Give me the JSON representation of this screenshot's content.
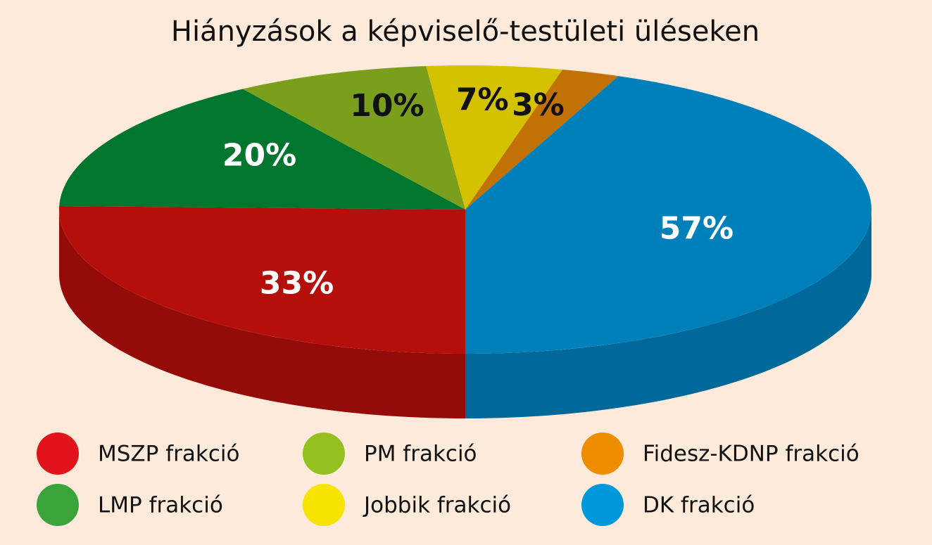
{
  "chart_data": {
    "type": "pie3d",
    "title": "Hiányzások a képviselő-testületi üléseken",
    "categories": [
      "MSZP frakció",
      "LMP frakció",
      "PM frakció",
      "Jobbik frakció",
      "Fidesz-KDNP frakció",
      "DK frakció"
    ],
    "values": [
      33,
      20,
      10,
      7,
      3,
      57
    ],
    "value_labels": [
      "33%",
      "20%",
      "10%",
      "7%",
      "3%",
      "57%"
    ],
    "colors": [
      "#b50f0c",
      "#00762e",
      "#7a9f1c",
      "#d4c100",
      "#c27205",
      "#0080bb"
    ],
    "legend_colors": [
      "#e1141b",
      "#3aa43a",
      "#93bf1f",
      "#f7e300",
      "#ef8d00",
      "#0098da"
    ],
    "label_colors": [
      "#ffffff",
      "#ffffff",
      "#111111",
      "#111111",
      "#111111",
      "#ffffff"
    ]
  }
}
